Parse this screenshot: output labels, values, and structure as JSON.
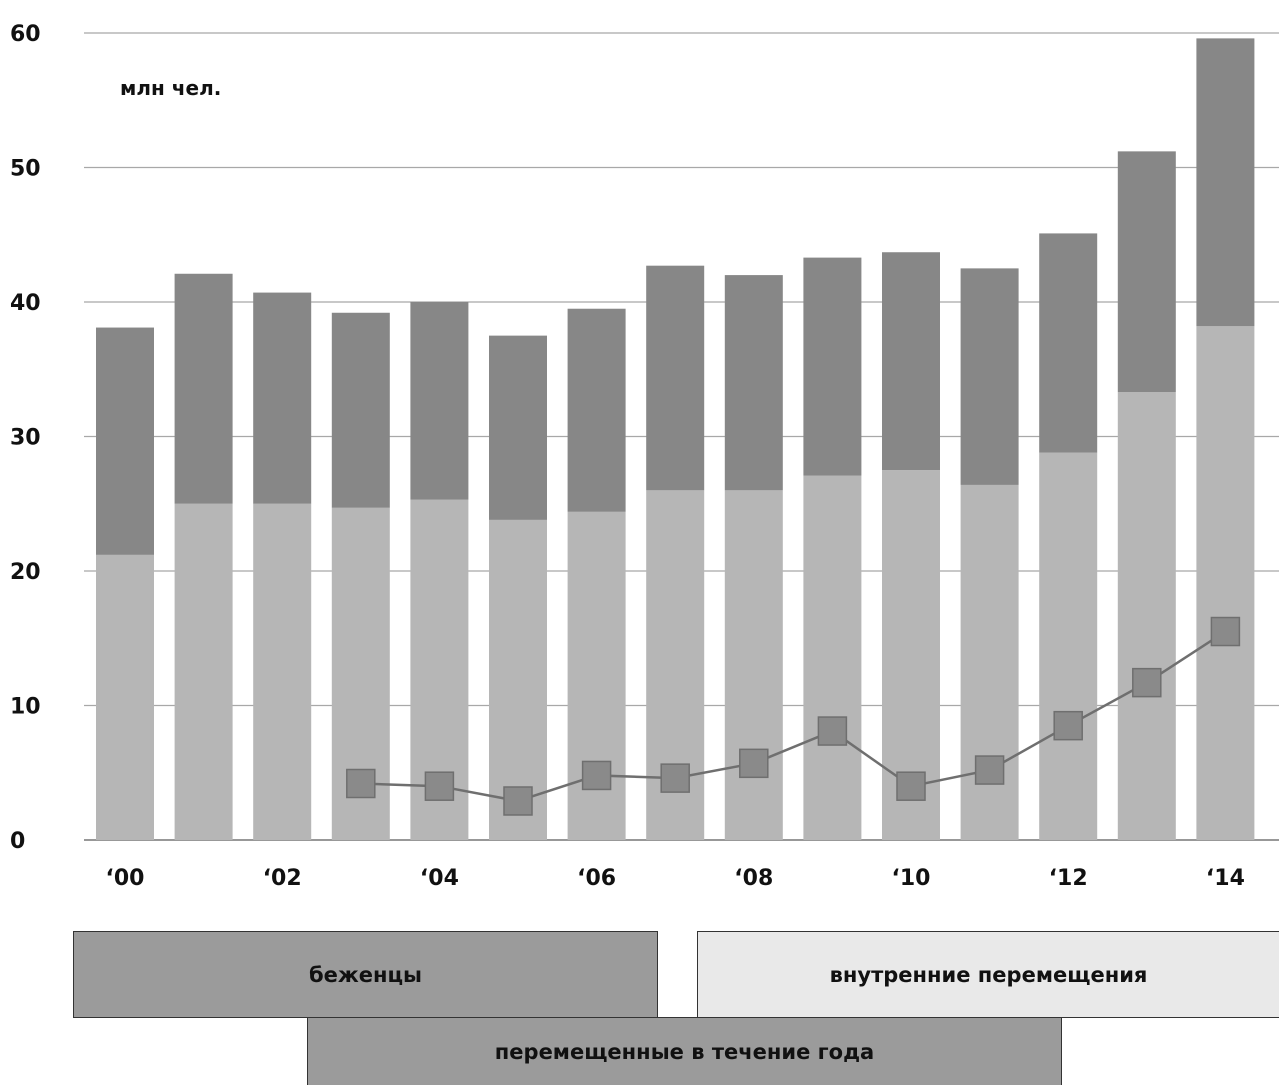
{
  "chart_data": {
    "type": "bar",
    "stacked": true,
    "unit_label": "млн чел.",
    "ylim": [
      0,
      60
    ],
    "y_ticks": [
      0,
      10,
      20,
      30,
      40,
      50,
      60
    ],
    "grid": true,
    "years": [
      "2000",
      "2001",
      "2002",
      "2003",
      "2004",
      "2005",
      "2006",
      "2007",
      "2008",
      "2009",
      "2010",
      "2011",
      "2012",
      "2013",
      "2014"
    ],
    "x_tick_labels": [
      "‘00",
      "",
      "‘02",
      "",
      "‘04",
      "",
      "‘06",
      "",
      "‘08",
      "",
      "‘10",
      "",
      "‘12",
      "",
      "‘14"
    ],
    "series": [
      {
        "name": "внутренние перемещения",
        "kind": "bar",
        "color": "#b6b6b6",
        "values": [
          21.2,
          25.0,
          25.0,
          24.7,
          25.3,
          23.8,
          24.4,
          26.0,
          26.0,
          27.1,
          27.5,
          26.4,
          28.8,
          33.3,
          38.2
        ]
      },
      {
        "name": "беженцы",
        "kind": "bar",
        "color": "#878787",
        "values": [
          16.9,
          17.1,
          15.7,
          14.5,
          14.7,
          13.7,
          15.1,
          16.7,
          16.0,
          16.2,
          16.2,
          16.1,
          16.3,
          17.9,
          21.4
        ]
      },
      {
        "name": "перемещенные в течение года",
        "kind": "line",
        "color": "#8a8a8a",
        "values": [
          null,
          null,
          null,
          4.2,
          4.0,
          2.9,
          4.8,
          4.6,
          5.7,
          8.1,
          4.0,
          5.2,
          8.5,
          11.7,
          15.5
        ]
      }
    ],
    "legend": [
      "беженцы",
      "внутренние перемещения",
      "перемещенные в течение года"
    ],
    "legend_placement": "bottom"
  }
}
